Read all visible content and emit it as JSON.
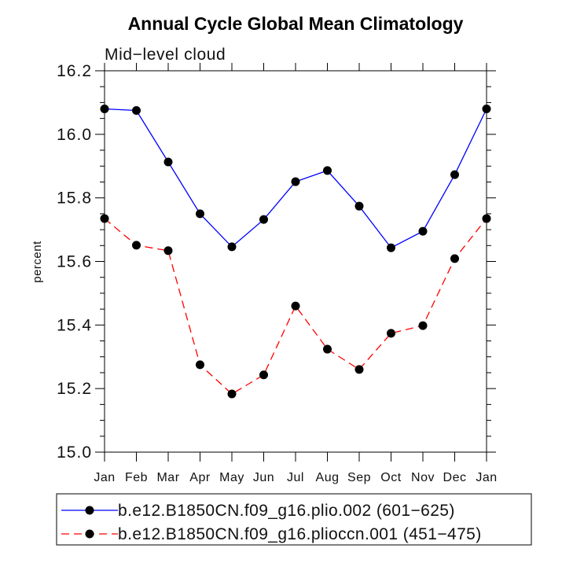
{
  "chart_data": {
    "type": "line",
    "title": "Annual Cycle Global Mean Climatology",
    "subtitle": "Mid−level cloud",
    "xlabel": "",
    "ylabel": "percent",
    "categories": [
      "Jan",
      "Feb",
      "Mar",
      "Apr",
      "May",
      "Jun",
      "Jul",
      "Aug",
      "Sep",
      "Oct",
      "Nov",
      "Dec",
      "Jan"
    ],
    "ylim": [
      15.0,
      16.2
    ],
    "yticks": [
      "15.0",
      "15.2",
      "15.4",
      "15.6",
      "15.8",
      "16.0",
      "16.2"
    ],
    "yminor_step": 0.05,
    "grid": false,
    "series": [
      {
        "name": "b.e12.B1850CN.f09_g16.plio.002 (601−625)",
        "color": "#0000ff",
        "dashed": false,
        "markers": true,
        "values": [
          16.08,
          16.075,
          15.913,
          15.75,
          15.646,
          15.732,
          15.851,
          15.886,
          15.774,
          15.643,
          15.695,
          15.873,
          16.08
        ]
      },
      {
        "name": "b.e12.B1850CN.f09_g16.plioccn.001 (451−475)",
        "color": "#ff0000",
        "dashed": true,
        "markers": true,
        "values": [
          15.735,
          15.651,
          15.634,
          15.275,
          15.183,
          15.243,
          15.46,
          15.324,
          15.26,
          15.374,
          15.398,
          15.609,
          15.735
        ]
      }
    ],
    "marker_color": "#000000"
  }
}
